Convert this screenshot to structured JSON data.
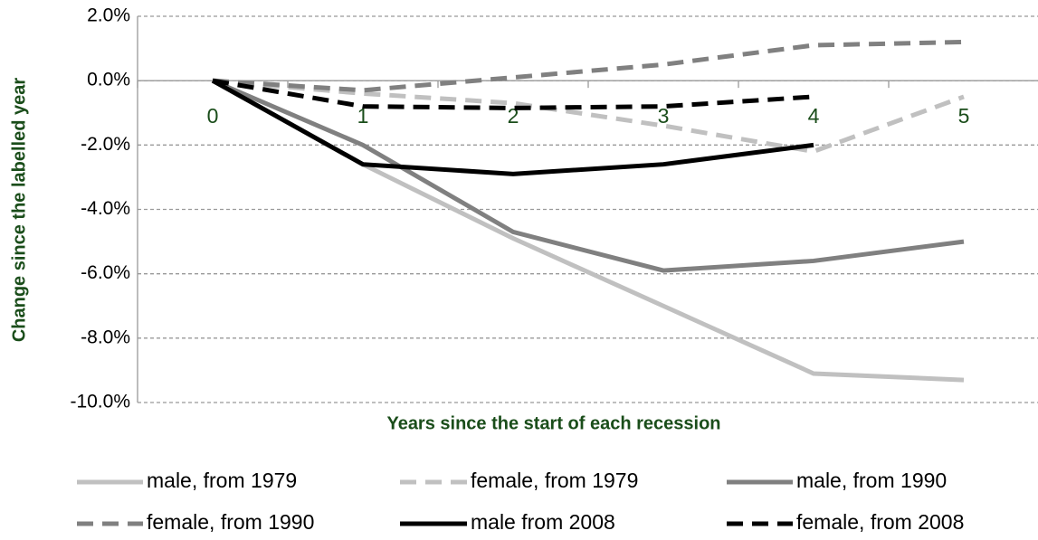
{
  "chart_data": {
    "type": "line",
    "x_label": "Years since the start of each recession",
    "y_label": "Change since the labelled year",
    "categories": [
      "0",
      "1",
      "2",
      "3",
      "4",
      "5"
    ],
    "series": [
      {
        "name": "male, from 1979",
        "color": "#c0c0c0",
        "dashed": false,
        "values": [
          0,
          -2.6,
          -4.9,
          -7.0,
          -9.1,
          -9.3
        ]
      },
      {
        "name": "female, from 1979",
        "color": "#c0c0c0",
        "dashed": true,
        "values": [
          0,
          -0.4,
          -0.7,
          -1.4,
          -2.2,
          -0.5
        ]
      },
      {
        "name": "male, from 1990",
        "color": "#808080",
        "dashed": false,
        "values": [
          0,
          -2.0,
          -4.7,
          -5.9,
          -5.6,
          -5.0
        ]
      },
      {
        "name": "female, from 1990",
        "color": "#808080",
        "dashed": true,
        "values": [
          0,
          -0.3,
          0.1,
          0.5,
          1.1,
          1.2
        ]
      },
      {
        "name": "male from 2008",
        "color": "#000000",
        "dashed": false,
        "values": [
          0,
          -2.6,
          -2.9,
          -2.6,
          -2.0,
          null
        ]
      },
      {
        "name": "female, from 2008",
        "color": "#000000",
        "dashed": true,
        "values": [
          0,
          -0.8,
          -0.85,
          -0.8,
          -0.5,
          null
        ]
      }
    ],
    "ylim": [
      -10,
      2
    ],
    "yticks": [
      {
        "value": -10,
        "label": "-10.0%"
      },
      {
        "value": -8,
        "label": "-8.0%"
      },
      {
        "value": -6,
        "label": "-6.0%"
      },
      {
        "value": -4,
        "label": "-4.0%"
      },
      {
        "value": -2,
        "label": "-2.0%"
      },
      {
        "value": 0,
        "label": "0.0%"
      },
      {
        "value": 2,
        "label": "2.0%"
      }
    ],
    "grid": true,
    "legend": "bottom"
  }
}
